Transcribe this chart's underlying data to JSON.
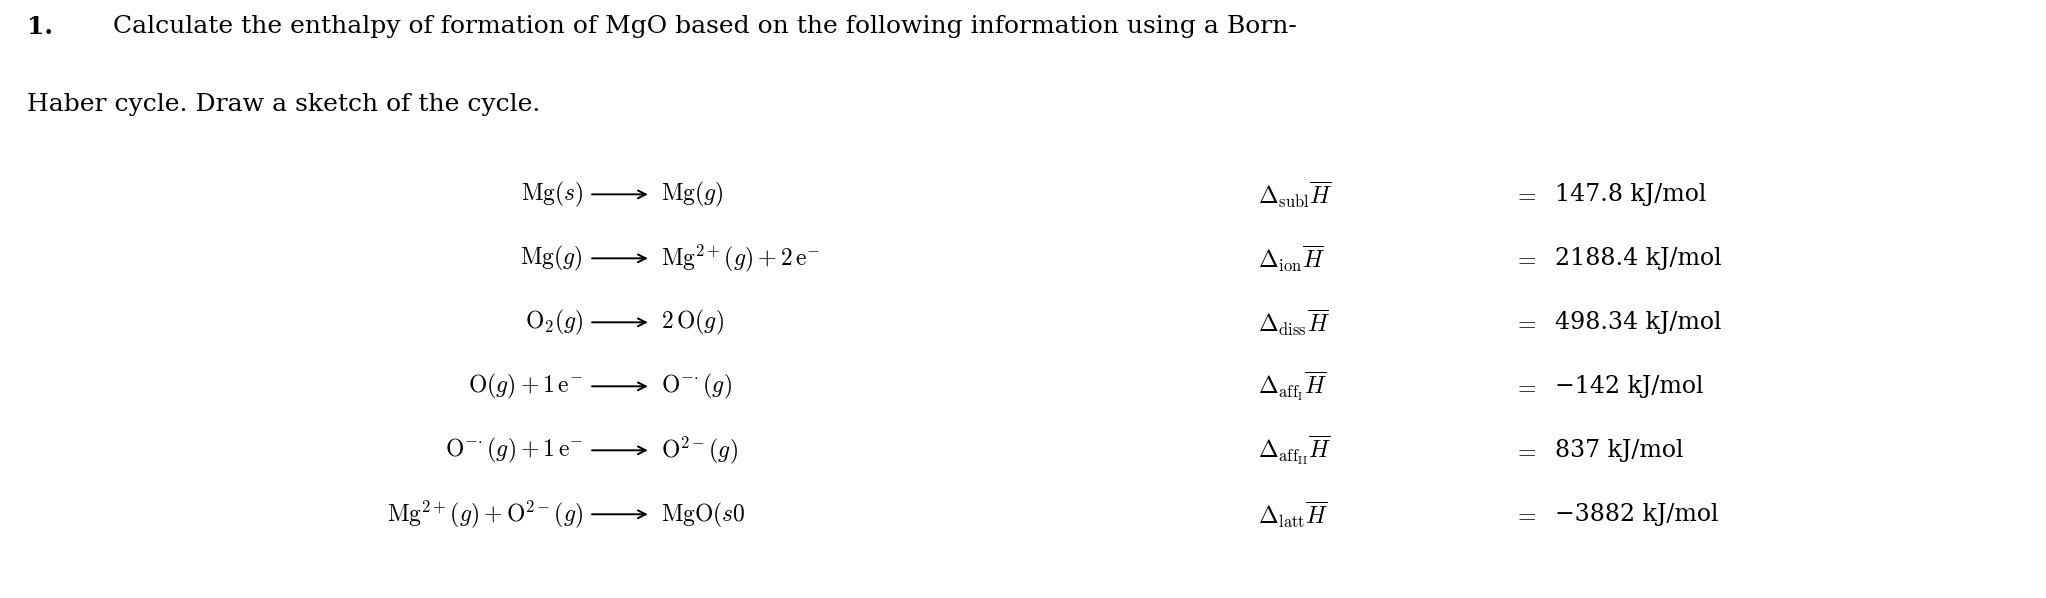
{
  "background_color": "#ffffff",
  "title_line1": "\\textbf{1.}\\quad Calculate the enthalpy of formation of MgO based on the following information using a Born-",
  "title_line2": "Haber cycle. Draw a sketch of the cycle.",
  "reactions_left": [
    "\\mathrm{Mg}(s)",
    "\\mathrm{Mg}(g)",
    "\\mathrm{O}_2(g)",
    "\\mathrm{O}(g) + 1\\,\\mathrm{e}^{-}",
    "\\mathrm{O}^{-\\!\\cdot}(g) + 1\\,\\mathrm{e}^{-}",
    "\\mathrm{Mg}^{2+}(g) + \\mathrm{O}^{2-}(g)"
  ],
  "reactions_right": [
    "\\mathrm{Mg}(g)",
    "\\mathrm{Mg}^{2+}(g) + 2\\,\\mathrm{e}^{-}",
    "2\\,\\mathrm{O}(g)",
    "\\mathrm{O}^{-\\!\\cdot}(g)",
    "\\mathrm{O}^{2-}(g)",
    "\\mathrm{MgO}(s0"
  ],
  "delta_labels": [
    "\\Delta_{\\mathrm{subl}}\\overline{H}",
    "\\Delta_{\\mathrm{ion}}\\overline{H}",
    "\\Delta_{\\mathrm{diss}}\\overline{H}",
    "\\Delta_{\\mathrm{aff_I}}\\overline{H}",
    "\\Delta_{\\mathrm{aff_{II}}}\\overline{H}",
    "\\Delta_{\\mathrm{latt}}\\overline{H}"
  ],
  "values": [
    "147.8 kJ/mol",
    "2188.4 kJ/mol",
    "498.34 kJ/mol",
    "-142 kJ/mol",
    "837 kJ/mol",
    "-3882 kJ/mol"
  ],
  "neg_values": [
    false,
    false,
    false,
    true,
    false,
    true
  ]
}
